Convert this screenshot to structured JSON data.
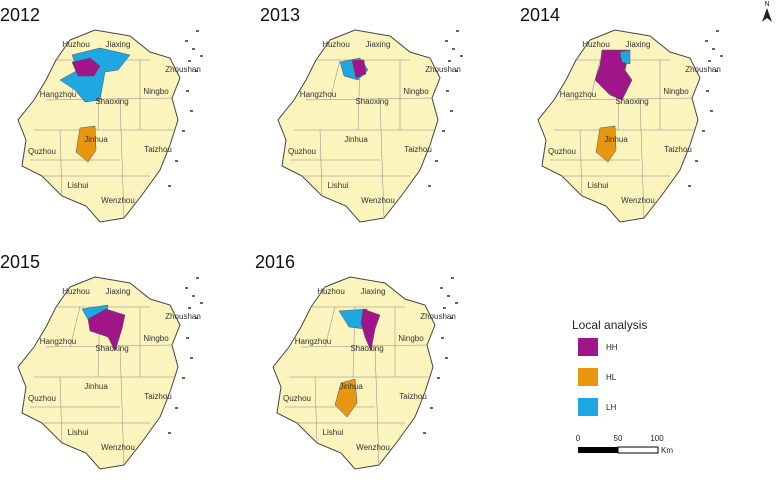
{
  "maps": [
    {
      "year": "2012",
      "cities": [
        "Huzhou",
        "Jiaxing",
        "Zhoushan",
        "Hangzhou",
        "Shaoxing",
        "Ningbo",
        "Jinhua",
        "Quzhou",
        "Taizhou",
        "Lishui",
        "Wenzhou"
      ]
    },
    {
      "year": "2013",
      "cities": [
        "Huzhou",
        "Jiaxing",
        "Zhoushan",
        "Hangzhou",
        "Shaoxing",
        "Ningbo",
        "Jinhua",
        "Quzhou",
        "Taizhou",
        "Lishui",
        "Wenzhou"
      ]
    },
    {
      "year": "2014",
      "cities": [
        "Huzhou",
        "Jiaxing",
        "Zhoushan",
        "Hangzhou",
        "Shaoxing",
        "Ningbo",
        "Jinhua",
        "Quzhou",
        "Taizhou",
        "Lishui",
        "Wenzhou"
      ]
    },
    {
      "year": "2015",
      "cities": [
        "Huzhou",
        "Jiaxing",
        "Zhoushan",
        "Hangzhou",
        "Shaoxing",
        "Ningbo",
        "Jinhua",
        "Quzhou",
        "Taizhou",
        "Lishui",
        "Wenzhou"
      ]
    },
    {
      "year": "2016",
      "cities": [
        "Huzhou",
        "Jiaxing",
        "Zhoushan",
        "Hangzhou",
        "Shaoxing",
        "Ningbo",
        "Jinhua",
        "Quzhou",
        "Taizhou",
        "Lishui",
        "Wenzhou"
      ]
    }
  ],
  "legend": {
    "title": "Local analysis",
    "items": [
      {
        "label": "HH",
        "color": "#a0168a"
      },
      {
        "label": "HL",
        "color": "#e8960f"
      },
      {
        "label": "LH",
        "color": "#1ea7e1"
      }
    ]
  },
  "scale": {
    "labels": [
      "0",
      "50",
      "100"
    ],
    "unit": "Km"
  },
  "north": "N"
}
